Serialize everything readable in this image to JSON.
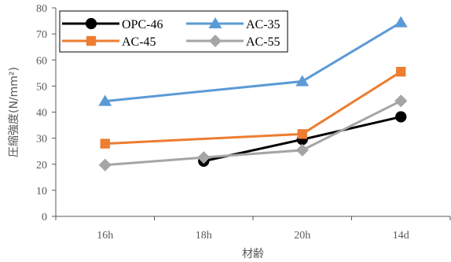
{
  "chart_data": {
    "type": "line",
    "categories": [
      "16h",
      "18h",
      "20h",
      "14d"
    ],
    "x": [
      "16h",
      "18h",
      "20h",
      "14d"
    ],
    "ylim": [
      0,
      80
    ],
    "yticks": [
      0,
      10,
      20,
      30,
      40,
      50,
      60,
      70,
      80
    ],
    "ylabel": "圧縮強度(N/mm²)",
    "xlabel": "材齢",
    "title": "",
    "legend_position": "top-left",
    "grid": false,
    "series": [
      {
        "name": "OPC-46",
        "color": "#000000",
        "marker": "circle",
        "values": [
          null,
          21.2,
          29.5,
          38.2
        ]
      },
      {
        "name": "AC-35",
        "color": "#5B9BD5",
        "marker": "triangle",
        "values": [
          44.2,
          null,
          51.8,
          74.4
        ]
      },
      {
        "name": "AC-45",
        "color": "#ED7D31",
        "marker": "square",
        "values": [
          27.9,
          null,
          31.6,
          55.5
        ]
      },
      {
        "name": "AC-55",
        "color": "#A5A5A5",
        "marker": "diamond",
        "values": [
          19.7,
          22.6,
          25.4,
          44.3
        ]
      }
    ]
  }
}
